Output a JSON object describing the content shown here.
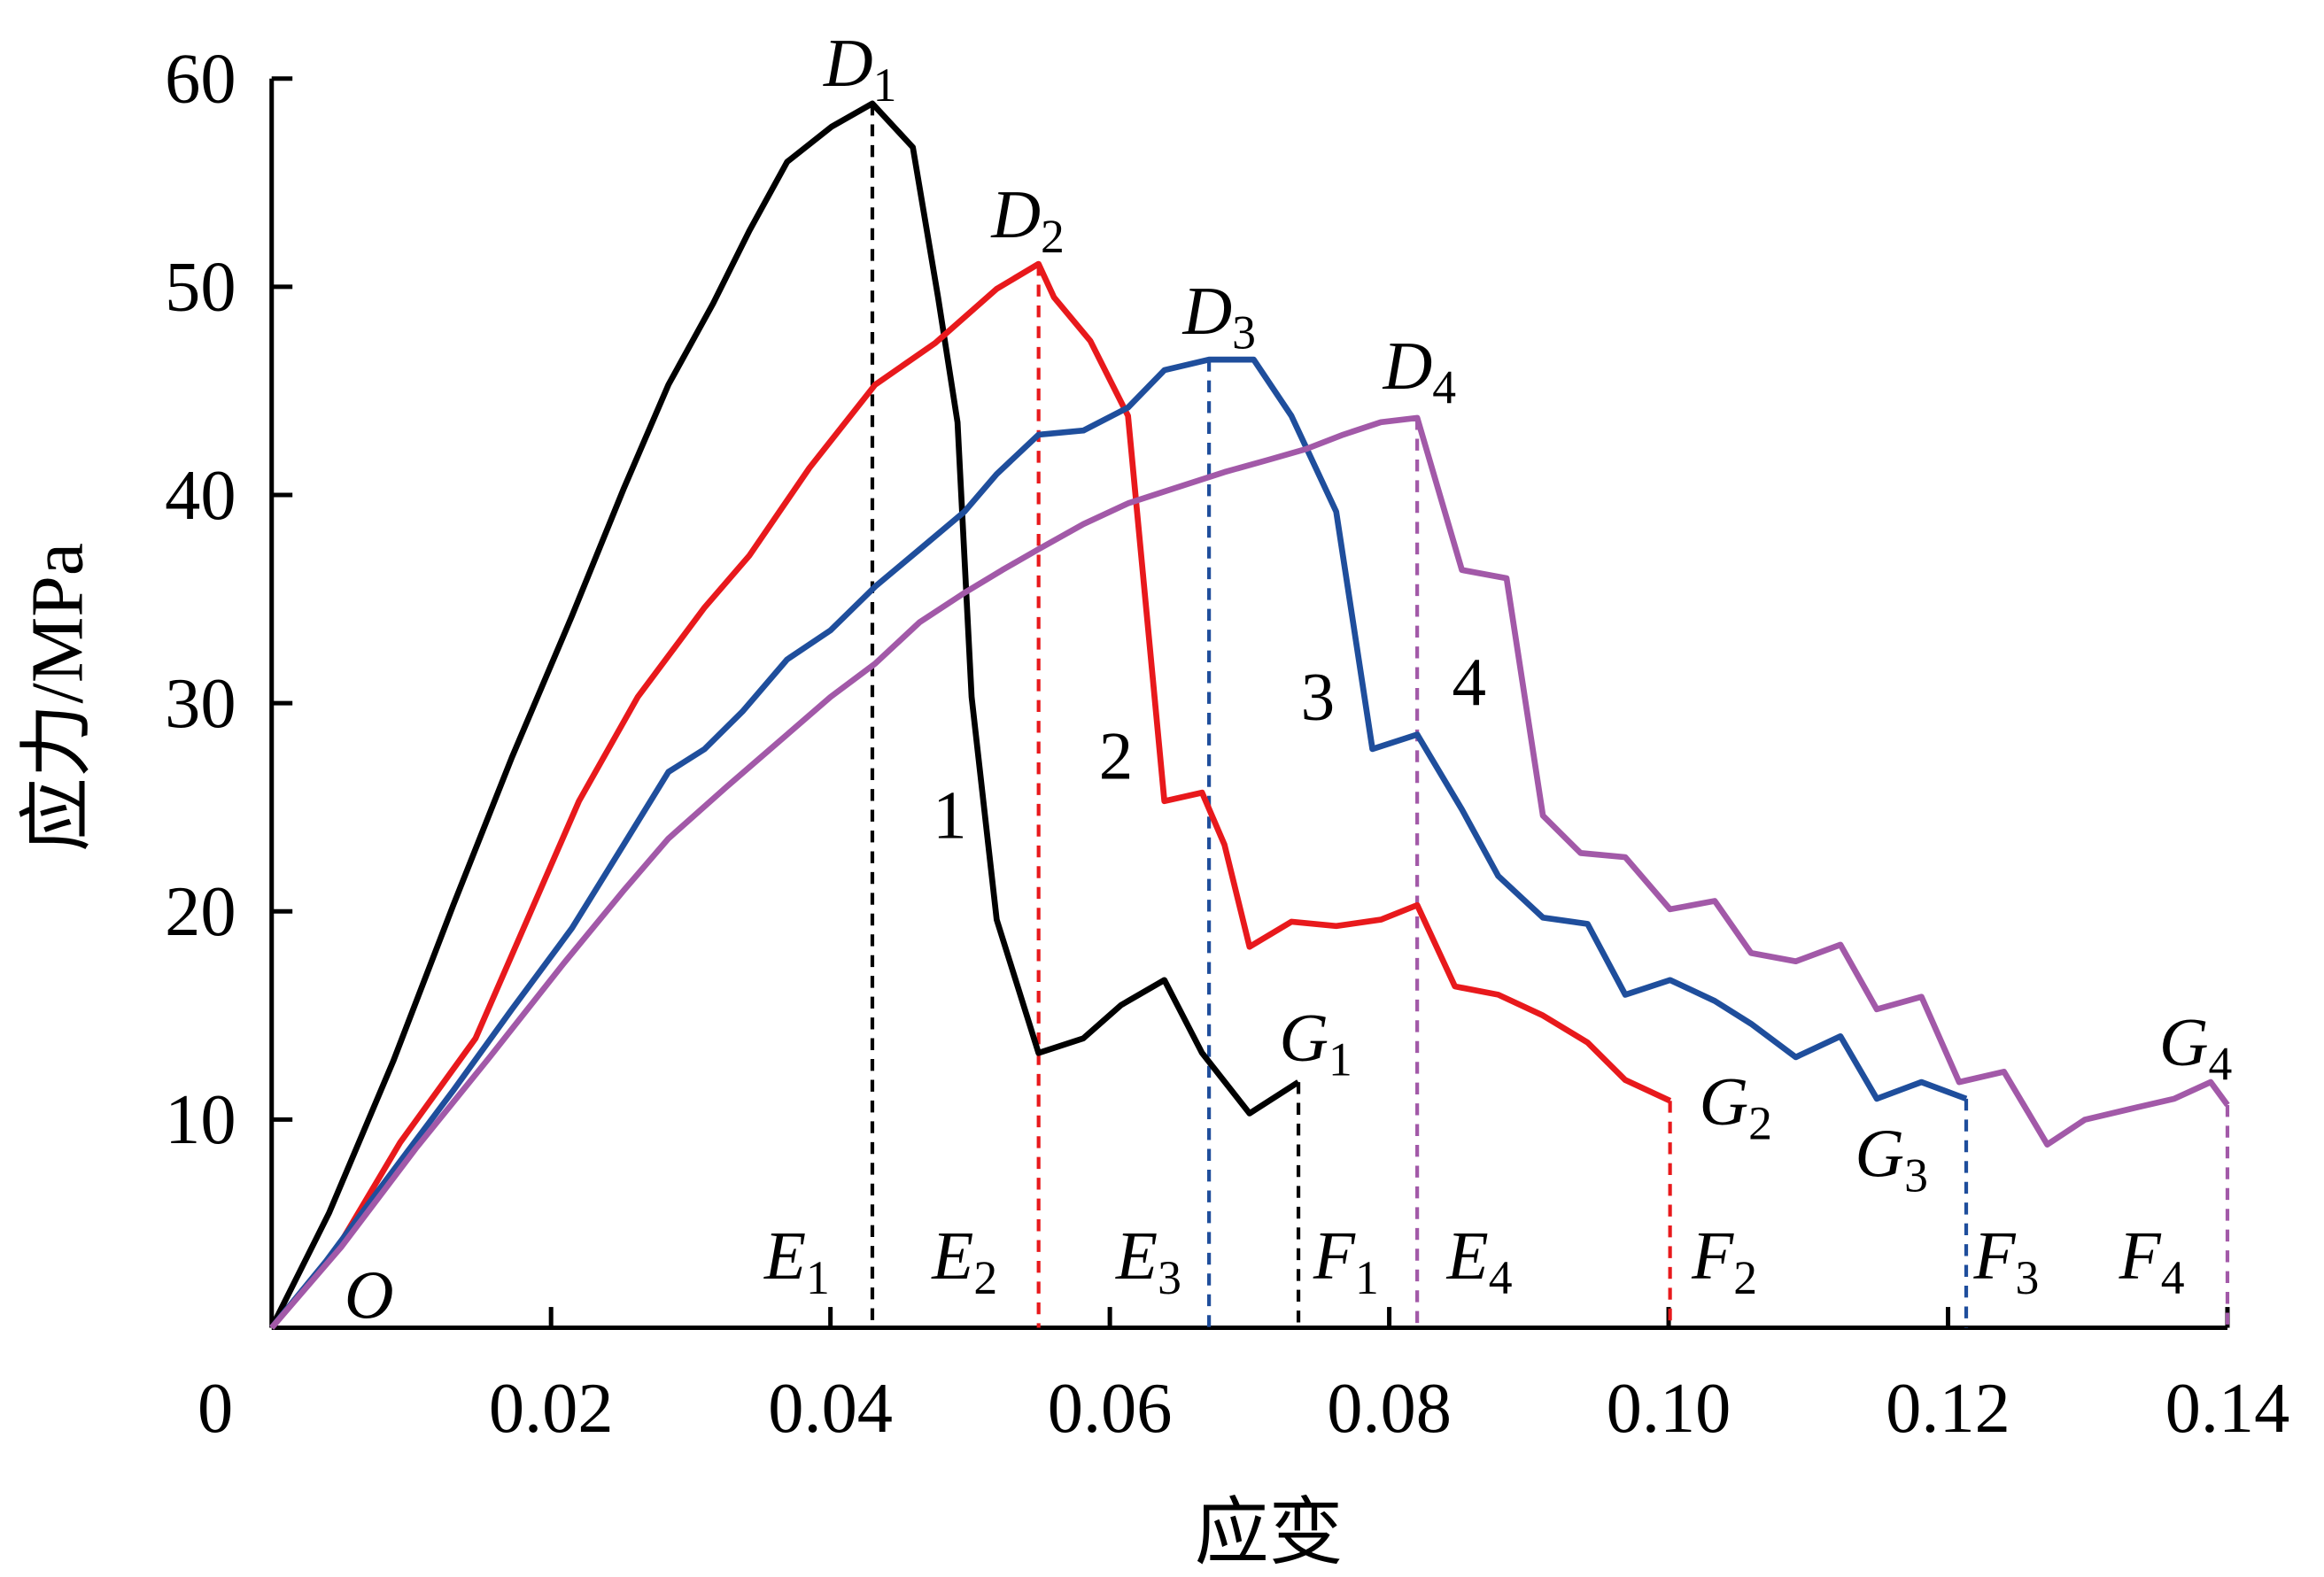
{
  "chart_data": {
    "type": "line",
    "xlabel": "应变",
    "ylabel": "应力/MPa",
    "xlim": [
      0,
      0.14
    ],
    "ylim": [
      0,
      60
    ],
    "xticks": [
      0,
      0.02,
      0.04,
      0.06,
      0.08,
      {
        "value": 0.1,
        "label": "0.10"
      },
      0.12,
      0.14
    ],
    "yticks": [
      10,
      20,
      30,
      40,
      50,
      60
    ],
    "series": [
      {
        "name": "1",
        "color": "#000000",
        "x": [
          0,
          0.0041,
          0.0087,
          0.013,
          0.0172,
          0.0215,
          0.0252,
          0.0284,
          0.0316,
          0.0342,
          0.0369,
          0.0401,
          0.043,
          0.0459,
          0.0477,
          0.0491,
          0.0501,
          0.0519,
          0.0549,
          0.0581,
          0.0608,
          0.0639,
          0.0666,
          0.07,
          0.0735
        ],
        "values": [
          0,
          5.5,
          12.8,
          20.3,
          27.4,
          34.2,
          40.3,
          45.3,
          49.2,
          52.7,
          56.0,
          57.7,
          58.8,
          56.7,
          49.5,
          43.5,
          30.3,
          19.6,
          13.2,
          13.9,
          15.5,
          16.7,
          13.2,
          10.3,
          11.8
        ]
      },
      {
        "name": "2",
        "color": "#e8191c",
        "x": [
          0,
          0.0045,
          0.0092,
          0.0146,
          0.022,
          0.0262,
          0.031,
          0.0342,
          0.0385,
          0.0432,
          0.0475,
          0.0519,
          0.0549,
          0.056,
          0.0586,
          0.0613,
          0.0639,
          0.0666,
          0.0682,
          0.07,
          0.073,
          0.0762,
          0.0794,
          0.082,
          0.0847,
          0.0878,
          0.091,
          0.0942,
          0.0969,
          0.1001
        ],
        "values": [
          0,
          3.6,
          8.9,
          13.9,
          25.3,
          30.3,
          34.6,
          37.1,
          41.3,
          45.3,
          47.3,
          49.9,
          51.1,
          49.5,
          47.4,
          43.8,
          25.3,
          25.7,
          23.2,
          18.3,
          19.5,
          19.3,
          19.6,
          20.3,
          16.4,
          16.0,
          15.0,
          13.7,
          11.9,
          10.9
        ]
      },
      {
        "name": "3",
        "color": "#1f4e9c",
        "x": [
          0,
          0.0039,
          0.0082,
          0.013,
          0.0172,
          0.0215,
          0.0252,
          0.0284,
          0.031,
          0.0337,
          0.0369,
          0.04,
          0.0432,
          0.0464,
          0.0496,
          0.0519,
          0.0549,
          0.0581,
          0.0613,
          0.0639,
          0.0671,
          0.0703,
          0.073,
          0.0762,
          0.0788,
          0.082,
          0.0852,
          0.0878,
          0.091,
          0.0942,
          0.0969,
          0.1001,
          0.1033,
          0.1059,
          0.1091,
          0.1123,
          0.1149,
          0.1181,
          0.1213
        ],
        "values": [
          0,
          3.2,
          7.1,
          11.4,
          15.3,
          19.2,
          23.2,
          26.7,
          27.8,
          29.6,
          32.1,
          33.5,
          35.6,
          37.4,
          39.2,
          41.0,
          42.9,
          43.1,
          44.2,
          46.0,
          46.5,
          46.5,
          43.8,
          39.2,
          27.8,
          28.5,
          24.9,
          21.7,
          19.7,
          19.4,
          16.0,
          16.7,
          15.7,
          14.6,
          13.0,
          14.0,
          11.0,
          11.8,
          11.0
        ]
      },
      {
        "name": "4",
        "color": "#a259a8",
        "x": [
          0,
          0.005,
          0.0103,
          0.0156,
          0.0209,
          0.0252,
          0.0284,
          0.0326,
          0.0369,
          0.04,
          0.0432,
          0.0464,
          0.0496,
          0.0523,
          0.0549,
          0.0581,
          0.0613,
          0.0645,
          0.0682,
          0.0714,
          0.074,
          0.0767,
          0.0794,
          0.082,
          0.0852,
          0.0884,
          0.091,
          0.0937,
          0.0969,
          0.1001,
          0.1033,
          0.1059,
          0.1091,
          0.1123,
          0.1149,
          0.1181,
          0.1208,
          0.124,
          0.1271,
          0.1298,
          0.133,
          0.1362,
          0.1388,
          0.14
        ],
        "values": [
          0,
          3.9,
          8.6,
          13.0,
          17.5,
          21.0,
          23.5,
          26.0,
          28.5,
          30.3,
          31.9,
          33.9,
          35.3,
          36.4,
          37.4,
          38.6,
          39.6,
          40.3,
          41.1,
          41.7,
          42.2,
          42.9,
          43.5,
          43.7,
          36.4,
          36.0,
          24.6,
          22.8,
          22.6,
          20.1,
          20.5,
          18.0,
          17.6,
          18.4,
          15.3,
          15.9,
          11.8,
          12.3,
          8.8,
          10.0,
          10.5,
          11.0,
          11.8,
          10.7
        ]
      }
    ],
    "point_labels": [
      {
        "letter": "O"
      },
      {
        "letter": "D",
        "sub": "1"
      },
      {
        "letter": "D",
        "sub": "2"
      },
      {
        "letter": "D",
        "sub": "3"
      },
      {
        "letter": "D",
        "sub": "4"
      },
      {
        "letter": "E",
        "sub": "1"
      },
      {
        "letter": "E",
        "sub": "2"
      },
      {
        "letter": "E",
        "sub": "3"
      },
      {
        "letter": "E",
        "sub": "4"
      },
      {
        "letter": "F",
        "sub": "1"
      },
      {
        "letter": "F",
        "sub": "2"
      },
      {
        "letter": "F",
        "sub": "3"
      },
      {
        "letter": "F",
        "sub": "4"
      },
      {
        "letter": "G",
        "sub": "1"
      },
      {
        "letter": "G",
        "sub": "2"
      },
      {
        "letter": "G",
        "sub": "3"
      },
      {
        "letter": "G",
        "sub": "4"
      }
    ]
  }
}
